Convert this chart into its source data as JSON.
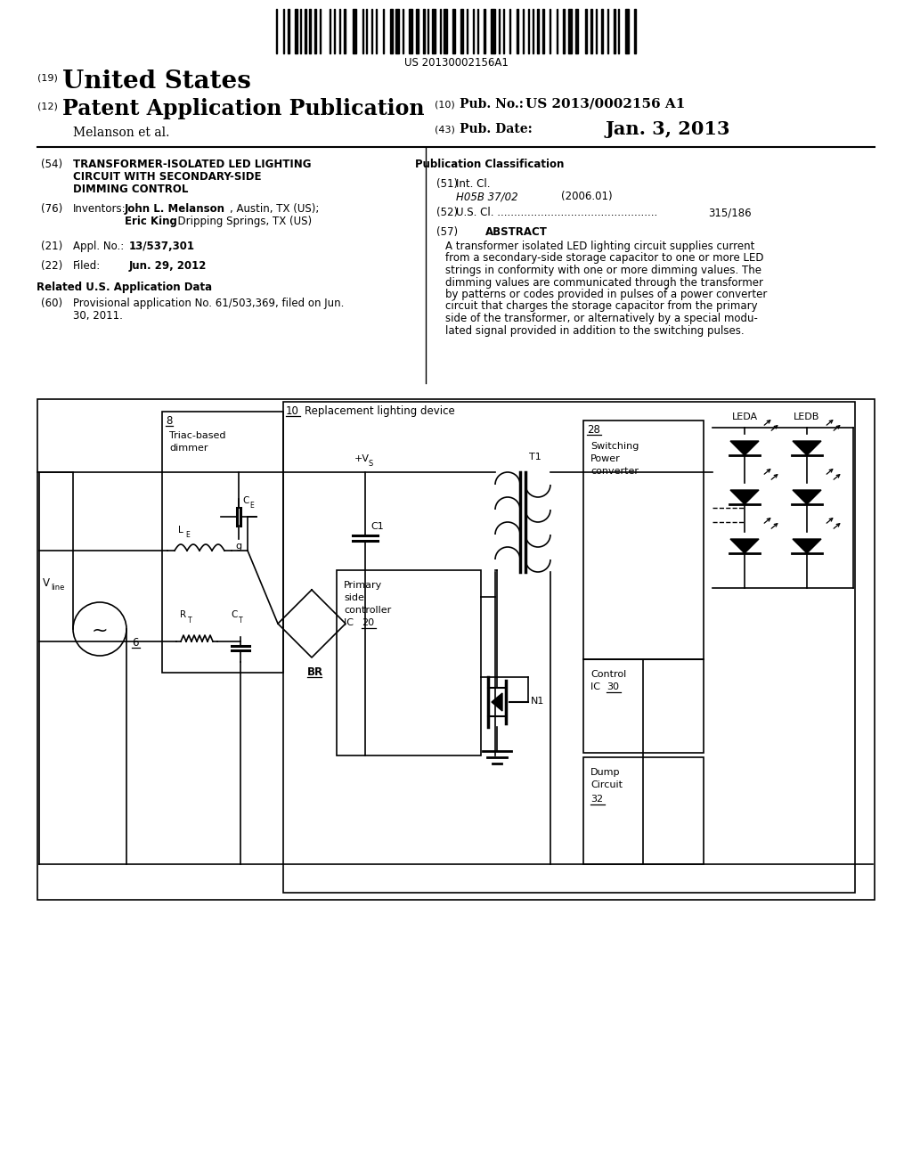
{
  "bg_color": "#ffffff",
  "barcode_text": "US 20130002156A1",
  "patent_number": "US 2013/0002156 A1",
  "pub_date_label": "Jan. 3, 2013",
  "country": "United States",
  "kind": "Patent Application Publication",
  "assignee": "Melanson et al.",
  "pub_no_label": "Pub. No.:",
  "pub_date_key": "Pub. Date:",
  "num_label": "(10)",
  "date_num_label": "(43)",
  "country_num": "(19)",
  "kind_num": "(12)",
  "title_num": "(54)",
  "inventors_num": "(76)",
  "inventors_label": "Inventors:",
  "appl_num_label": "(21)",
  "filed_num": "(22)",
  "related_title": "Related U.S. Application Data",
  "related_num": "(60)",
  "pub_class_title": "Publication Classification",
  "int_cl_num": "(51)",
  "int_cl_label": "Int. Cl.",
  "int_cl_value": "H05B 37/02",
  "int_cl_year": "(2006.01)",
  "us_cl_num": "(52)",
  "us_cl_value": "315/186",
  "abstract_num": "(57)",
  "abstract_title": "ABSTRACT",
  "abstract_text": "A transformer isolated LED lighting circuit supplies current\nfrom a secondary-side storage capacitor to one or more LED\nstrings in conformity with one or more dimming values. The\ndimming values are communicated through the transformer\nby patterns or codes provided in pulses of a power converter\ncircuit that charges the storage capacitor from the primary\nside of the transformer, or alternatively by a special modu-\nlated signal provided in addition to the switching pulses."
}
